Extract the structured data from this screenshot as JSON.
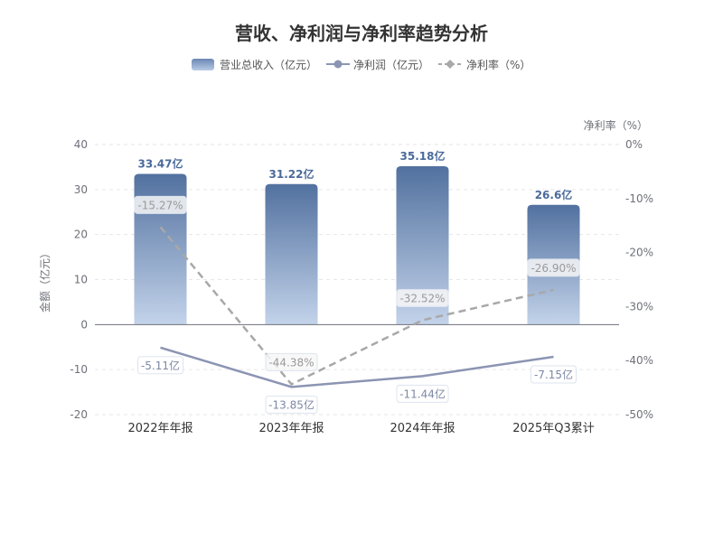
{
  "chart_data": {
    "type": "bar",
    "title": "营收、净利润与净利率趋势分析",
    "categories": [
      "2022年年报",
      "2023年年报",
      "2024年年报",
      "2025年Q3累计"
    ],
    "legend": [
      "营业总收入（亿元）",
      "净利润（亿元）",
      "净利率（%）"
    ],
    "left_axis": {
      "name": "金额（亿元）",
      "min": -20,
      "max": 40,
      "ticks": [
        "40",
        "30",
        "20",
        "10",
        "0",
        "-10",
        "-20"
      ]
    },
    "right_axis": {
      "name": "净利率（%）",
      "min": -50,
      "max": 0,
      "ticks": [
        "0%",
        "-10%",
        "-20%",
        "-30%",
        "-40%",
        "-50%"
      ]
    },
    "series": [
      {
        "name": "营业总收入（亿元）",
        "type": "bar",
        "values": [
          33.47,
          31.22,
          35.18,
          26.6
        ],
        "labels": [
          "33.47亿",
          "31.22亿",
          "35.18亿",
          "26.6亿"
        ],
        "color": "#5b79a8"
      },
      {
        "name": "净利润（亿元）",
        "type": "line",
        "values": [
          -5.11,
          -13.85,
          -11.44,
          -7.15
        ],
        "labels": [
          "-5.11亿",
          "-13.85亿",
          "-11.44亿",
          "-7.15亿"
        ],
        "color": "#8b95b3"
      },
      {
        "name": "净利率（%）",
        "type": "line",
        "dashed": true,
        "axis": "right",
        "values": [
          -15.27,
          -44.38,
          -32.52,
          -26.9
        ],
        "labels": [
          "-15.27%",
          "-44.38%",
          "-32.52%",
          "-26.90%"
        ],
        "color": "#a8a8a8"
      }
    ],
    "grid": "horizontal dashed"
  }
}
